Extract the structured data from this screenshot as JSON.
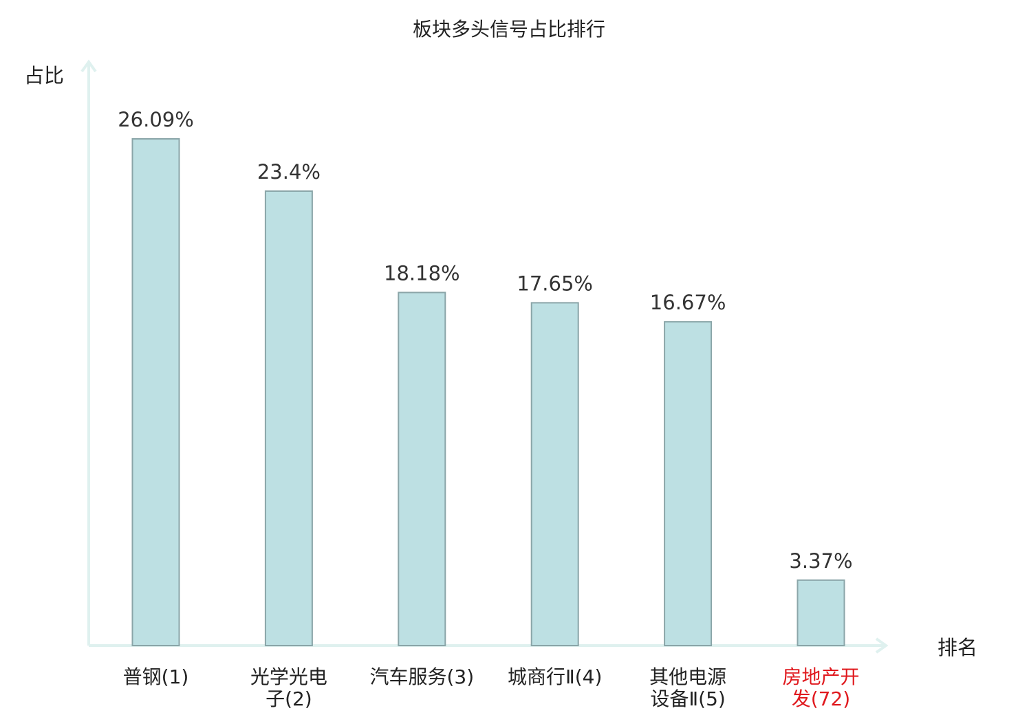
{
  "chart_data": {
    "type": "bar",
    "title": "板块多头信号占比排行",
    "xlabel": "排名",
    "ylabel": "占比",
    "categories": [
      [
        "普钢(1)"
      ],
      [
        "光学光电",
        "子(2)"
      ],
      [
        "汽车服务(3)"
      ],
      [
        "城商行Ⅱ(4)"
      ],
      [
        "其他电源",
        "设备Ⅱ(5)"
      ],
      [
        "房地产开",
        "发(72)"
      ]
    ],
    "values": [
      26.09,
      23.4,
      18.18,
      17.65,
      16.67,
      3.37
    ],
    "value_labels": [
      "26.09%",
      "23.4%",
      "18.18%",
      "17.65%",
      "16.67%",
      "3.37%"
    ],
    "highlight_index": 5,
    "ylim": [
      0,
      28
    ],
    "grid": false,
    "legend": "none",
    "colors": {
      "bar_fill": "#bde0e3",
      "bar_stroke": "#8aa5a8",
      "axis": "#dff1ef",
      "text": "#222222",
      "highlight_text": "#e0191e"
    }
  }
}
